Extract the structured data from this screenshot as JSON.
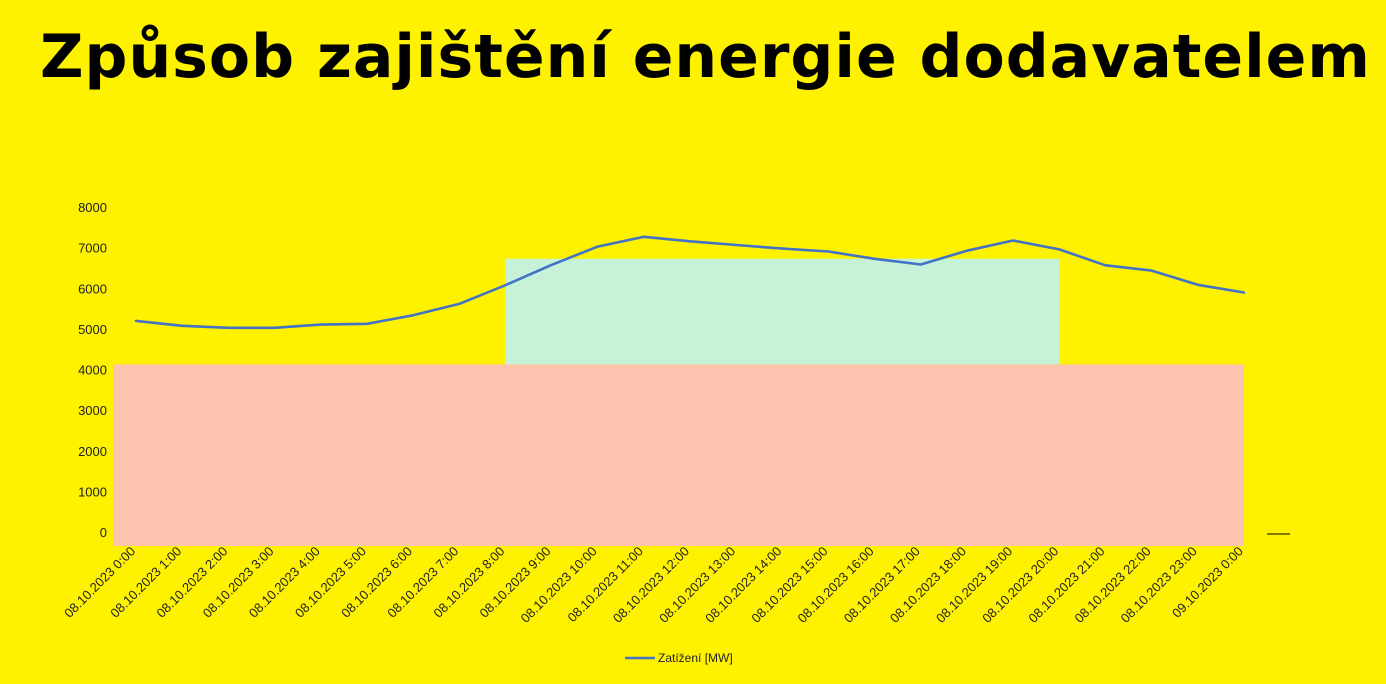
{
  "page": {
    "title": "Způsob zajištění energie dodavatelem",
    "background_color": "#FFF200"
  },
  "chart_data": {
    "type": "line",
    "title": "Způsob zajištění energie dodavatelem",
    "xlabel": "",
    "ylabel": "",
    "ylim": [
      0,
      8000
    ],
    "yticks": [
      0,
      1000,
      2000,
      3000,
      4000,
      5000,
      6000,
      7000,
      8000
    ],
    "grid": false,
    "legend_position": "bottom",
    "categories": [
      "08.10.2023 0:00",
      "08.10.2023 1:00",
      "08.10.2023 2:00",
      "08.10.2023 3:00",
      "08.10.2023 4:00",
      "08.10.2023 5:00",
      "08.10.2023 6:00",
      "08.10.2023 7:00",
      "08.10.2023 8:00",
      "08.10.2023 9:00",
      "08.10.2023 10:00",
      "08.10.2023 11:00",
      "08.10.2023 12:00",
      "08.10.2023 13:00",
      "08.10.2023 14:00",
      "08.10.2023 15:00",
      "08.10.2023 16:00",
      "08.10.2023 17:00",
      "08.10.2023 18:00",
      "08.10.2023 19:00",
      "08.10.2023 20:00",
      "08.10.2023 21:00",
      "08.10.2023 22:00",
      "08.10.2023 23:00",
      "09.10.2023 0:00"
    ],
    "series": [
      {
        "name": "Zatížení [MW]",
        "color": "#4472C4",
        "values": [
          5220,
          5100,
          5050,
          5050,
          5130,
          5150,
          5360,
          5640,
          6100,
          6600,
          7050,
          7290,
          7180,
          7090,
          7000,
          6930,
          6750,
          6610,
          6950,
          7200,
          6980,
          6590,
          6460,
          6110,
          5920
        ]
      }
    ],
    "shaded_regions": [
      {
        "role": "base",
        "color": "#FCC3AE",
        "x_from": "08.10.2023 0:00",
        "x_to": "09.10.2023 0:00",
        "y_from": 0,
        "y_to": 4150
      },
      {
        "role": "peak",
        "color": "#C6F2D8",
        "x_from": "08.10.2023 8:00",
        "x_to": "08.10.2023 20:00",
        "y_from": 4150,
        "y_to": 6750
      }
    ]
  }
}
